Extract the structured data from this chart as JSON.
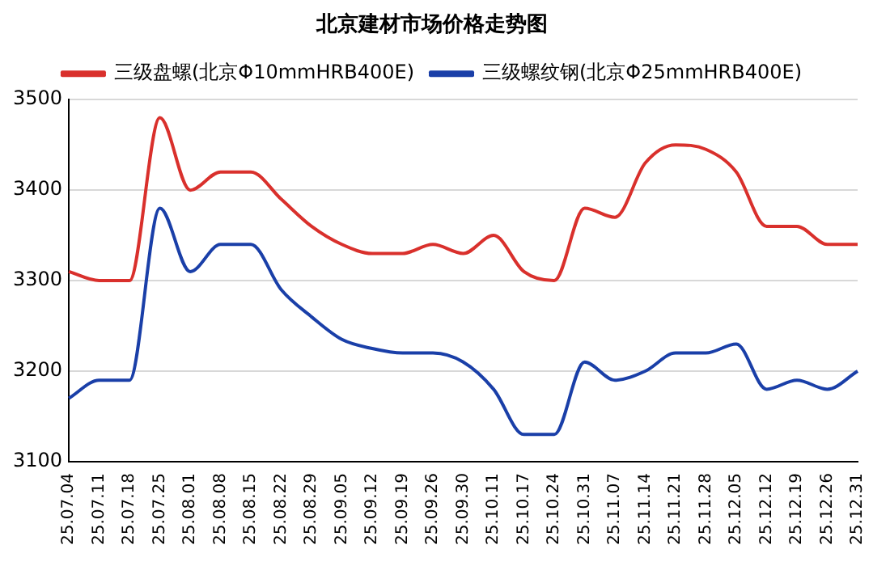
{
  "chart_data": {
    "type": "line",
    "title": "北京建材市场价格走势图",
    "categories": [
      "25.07.04",
      "25.07.11",
      "25.07.18",
      "25.07.25",
      "25.08.01",
      "25.08.08",
      "25.08.15",
      "25.08.22",
      "25.08.29",
      "25.09.05",
      "25.09.12",
      "25.09.19",
      "25.09.26",
      "25.09.30",
      "25.10.11",
      "25.10.17",
      "25.10.24",
      "25.10.31",
      "25.11.07",
      "25.11.14",
      "25.11.21",
      "25.11.28",
      "25.12.05",
      "25.12.12",
      "25.12.19",
      "25.12.26",
      "25.12.31"
    ],
    "series": [
      {
        "name": "三级盘螺(北京Φ10mmHRB400E)",
        "color": "#d9302c",
        "values": [
          3310,
          3300,
          3300,
          3480,
          3400,
          3420,
          3420,
          3390,
          3360,
          3340,
          3330,
          3330,
          3340,
          3330,
          3350,
          3310,
          3300,
          3380,
          3370,
          3430,
          3450,
          3445,
          3420,
          3360,
          3360,
          3340,
          3340
        ]
      },
      {
        "name": "三级螺纹钢(北京Φ25mmHRB400E)",
        "color": "#1a3fa8",
        "values": [
          3170,
          3190,
          3190,
          3380,
          3310,
          3340,
          3340,
          3290,
          3260,
          3235,
          3225,
          3220,
          3220,
          3210,
          3180,
          3130,
          3130,
          3210,
          3190,
          3200,
          3220,
          3220,
          3230,
          3180,
          3190,
          3180,
          3200
        ]
      }
    ],
    "ylim": [
      3100,
      3500
    ],
    "yticks": [
      3100,
      3200,
      3300,
      3400,
      3500
    ],
    "grid": "y",
    "legend": "top",
    "marker": "none",
    "line_style": "solid"
  }
}
